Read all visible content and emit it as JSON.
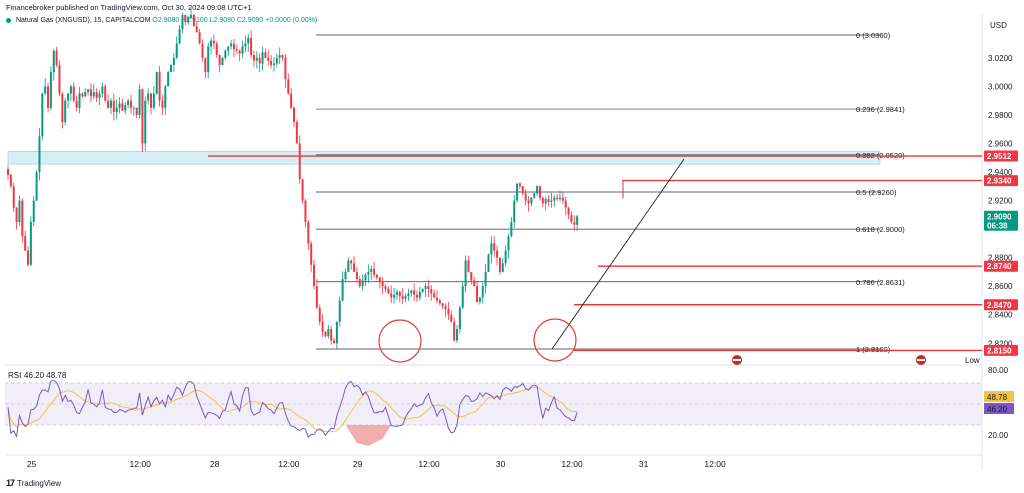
{
  "header": {
    "publisher": "Financebroker published on TradingView.com, Oct 30, 2024 09:08 UTC+1",
    "symbol": "Natural Gas (XNGUSD), 15, CAPITALCOM",
    "ohlc": "O2.9080  H2.9100  L2.9080  C2.9090  +0.0000 (0.00%)",
    "currency": "USD"
  },
  "footer": {
    "brand": "TradingView"
  },
  "colors": {
    "bull": "#089981",
    "bear": "#f23645",
    "level": "#e53935",
    "rsi": "#7e57c2",
    "rsi_ma": "#f5c242",
    "zone": "#d6eef5"
  },
  "chart_data": {
    "type": "candlestick",
    "y_axis_labels": [
      "3.0200",
      "3.0000",
      "2.9800",
      "2.9600",
      "2.9400",
      "2.9200",
      "2.8800",
      "2.8600",
      "2.8400",
      "2.8200",
      "2.8150"
    ],
    "x_axis_labels": [
      {
        "label": "25",
        "x_index": 8
      },
      {
        "label": "12:00",
        "x_index": 46
      },
      {
        "label": "28",
        "x_index": 72
      },
      {
        "label": "12:00",
        "x_index": 98
      },
      {
        "label": "29",
        "x_index": 122
      },
      {
        "label": "12:00",
        "x_index": 147
      },
      {
        "label": "30",
        "x_index": 172
      },
      {
        "label": "12:00",
        "x_index": 197
      },
      {
        "label": "31",
        "x_index": 222
      },
      {
        "label": "12:00",
        "x_index": 247
      }
    ],
    "fib_levels": [
      {
        "label": "0 (3.0360)",
        "value": 3.036
      },
      {
        "label": "0.236 (2.9841)",
        "value": 2.9841
      },
      {
        "label": "0.382 (2.9520)",
        "value": 2.952
      },
      {
        "label": "0.5 (2.9260)",
        "value": 2.926
      },
      {
        "label": "0.618 (2.9000)",
        "value": 2.9
      },
      {
        "label": "0.786 (2.8631)",
        "value": 2.8631
      },
      {
        "label": "1 (2.8160)",
        "value": 2.816
      }
    ],
    "horizontal_levels": [
      2.9512,
      2.934,
      2.874,
      2.847,
      2.815
    ],
    "price_badges": [
      {
        "text": "2.9512",
        "value": 2.9512,
        "color": "#f23645"
      },
      {
        "text": "2.9340",
        "value": 2.934,
        "color": "#f23645"
      },
      {
        "text": "2.9090",
        "sub": "06:38",
        "value": 2.909,
        "color": "#089981"
      },
      {
        "text": "2.8740",
        "value": 2.874,
        "color": "#f23645"
      },
      {
        "text": "2.8470",
        "value": 2.847,
        "color": "#f23645"
      },
      {
        "text": "2.8150",
        "value": 2.815,
        "color": "#f23645"
      }
    ],
    "low_label": "Low",
    "rsi": {
      "label": "RSI",
      "value_text": "46.20",
      "ma_text": "48.78",
      "legend_values": "46.20  48.78",
      "axis_labels": [
        "80.00",
        "20.00"
      ],
      "upper": 70,
      "lower": 30
    },
    "close_series": [
      2.938,
      2.93,
      2.915,
      2.905,
      2.92,
      2.895,
      2.885,
      2.875,
      2.905,
      2.92,
      2.94,
      2.965,
      2.995,
      3.0,
      2.985,
      3.01,
      3.025,
      3.015,
      2.995,
      2.975,
      2.99,
      2.995,
      3.0,
      2.99,
      2.985,
      2.995,
      2.993,
      2.996,
      2.998,
      2.993,
      2.996,
      2.992,
      2.995,
      3.0,
      2.99,
      2.985,
      2.99,
      2.982,
      2.985,
      2.988,
      2.983,
      2.987,
      2.99,
      2.985,
      2.985,
      2.98,
      2.998,
      2.96,
      2.99,
      2.995,
      2.985,
      2.995,
      3.01,
      2.99,
      2.985,
      3.0,
      3.01,
      3.015,
      3.02,
      3.03,
      3.04,
      3.05,
      3.045,
      3.048,
      3.05,
      3.042,
      3.038,
      3.03,
      3.02,
      3.01,
      3.028,
      3.032,
      3.03,
      3.022,
      3.015,
      3.02,
      3.025,
      3.028,
      3.03,
      3.026,
      3.025,
      3.023,
      3.028,
      3.03,
      3.034,
      3.022,
      3.018,
      3.02,
      3.016,
      3.024,
      3.02,
      3.018,
      3.015,
      3.016,
      3.02,
      3.022,
      3.02,
      3.005,
      2.995,
      2.985,
      2.975,
      2.96,
      2.935,
      2.92,
      2.905,
      2.89,
      2.875,
      2.86,
      2.845,
      2.835,
      2.828,
      2.825,
      2.83,
      2.822,
      2.82,
      2.835,
      2.85,
      2.865,
      2.87,
      2.878,
      2.876,
      2.87,
      2.865,
      2.86,
      2.864,
      2.868,
      2.87,
      2.872,
      2.868,
      2.866,
      2.863,
      2.86,
      2.858,
      2.855,
      2.852,
      2.854,
      2.856,
      2.853,
      2.851,
      2.853,
      2.855,
      2.857,
      2.854,
      2.852,
      2.856,
      2.858,
      2.86,
      2.858,
      2.855,
      2.852,
      2.85,
      2.848,
      2.846,
      2.844,
      2.84,
      2.835,
      2.822,
      2.83,
      2.845,
      2.86,
      2.878,
      2.87,
      2.864,
      2.86,
      2.849,
      2.852,
      2.86,
      2.87,
      2.882,
      2.89,
      2.885,
      2.88,
      2.87,
      2.876,
      2.885,
      2.895,
      2.905,
      2.92,
      2.932,
      2.93,
      2.925,
      2.92,
      2.918,
      2.922,
      2.925,
      2.93,
      2.922,
      2.918,
      2.921,
      2.919,
      2.92,
      2.922,
      2.921,
      2.922,
      2.92,
      2.915,
      2.91,
      2.905,
      2.903,
      2.909
    ],
    "annotations": [
      "circle-low-1",
      "circle-low-2",
      "trendline"
    ]
  }
}
